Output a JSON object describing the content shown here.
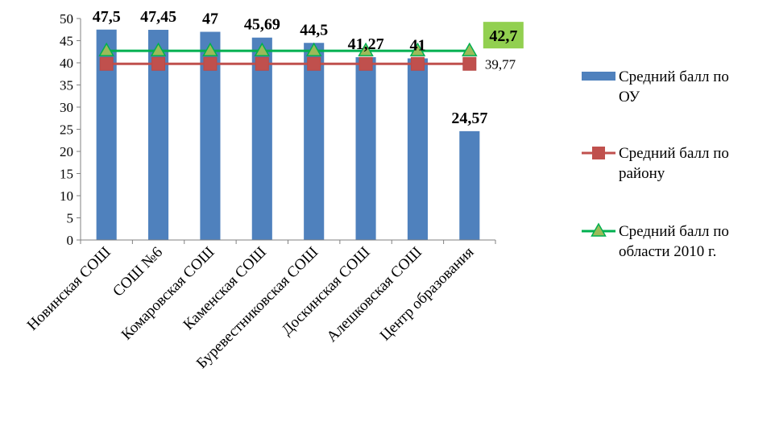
{
  "chart_data": {
    "type": "bar",
    "categories": [
      "Новинская СОШ",
      "СОШ №6",
      "Комаровская СОШ",
      "Каменская СОШ",
      "Буревестниковская СОШ",
      "Доскинская СОШ",
      "Алешковская СОШ",
      "Центр образования"
    ],
    "series": [
      {
        "name": "Средний балл по ОУ",
        "type": "bar",
        "values": [
          47.5,
          47.45,
          47,
          45.69,
          44.5,
          41.27,
          41,
          24.57
        ],
        "data_labels": [
          "47,5",
          "47,45",
          "47",
          "45,69",
          "44,5",
          "41,27",
          "41",
          "24,57"
        ],
        "color": "#4f81bd"
      },
      {
        "name": "Средний балл по району",
        "type": "line",
        "values": [
          39.77,
          39.77,
          39.77,
          39.77,
          39.77,
          39.77,
          39.77,
          39.77
        ],
        "end_label": "39,77",
        "color": "#c0504d",
        "marker": "square"
      },
      {
        "name": "Средний балл по области 2010 г.",
        "type": "line",
        "values": [
          42.7,
          42.7,
          42.7,
          42.7,
          42.7,
          42.7,
          42.7,
          42.7
        ],
        "end_label": "42,7",
        "color": "#00b050",
        "marker": "triangle",
        "end_label_background": "#92d050"
      }
    ],
    "ylim": [
      0,
      50
    ],
    "yticks": [
      "0",
      "5",
      "10",
      "15",
      "20",
      "25",
      "30",
      "35",
      "40",
      "45",
      "50"
    ],
    "grid": false,
    "legend_position": "right",
    "legend_lines": [
      [
        "Средний балл по",
        "ОУ"
      ],
      [
        "Средний балл по",
        "району"
      ],
      [
        "Средний балл по",
        "области 2010 г."
      ]
    ]
  }
}
